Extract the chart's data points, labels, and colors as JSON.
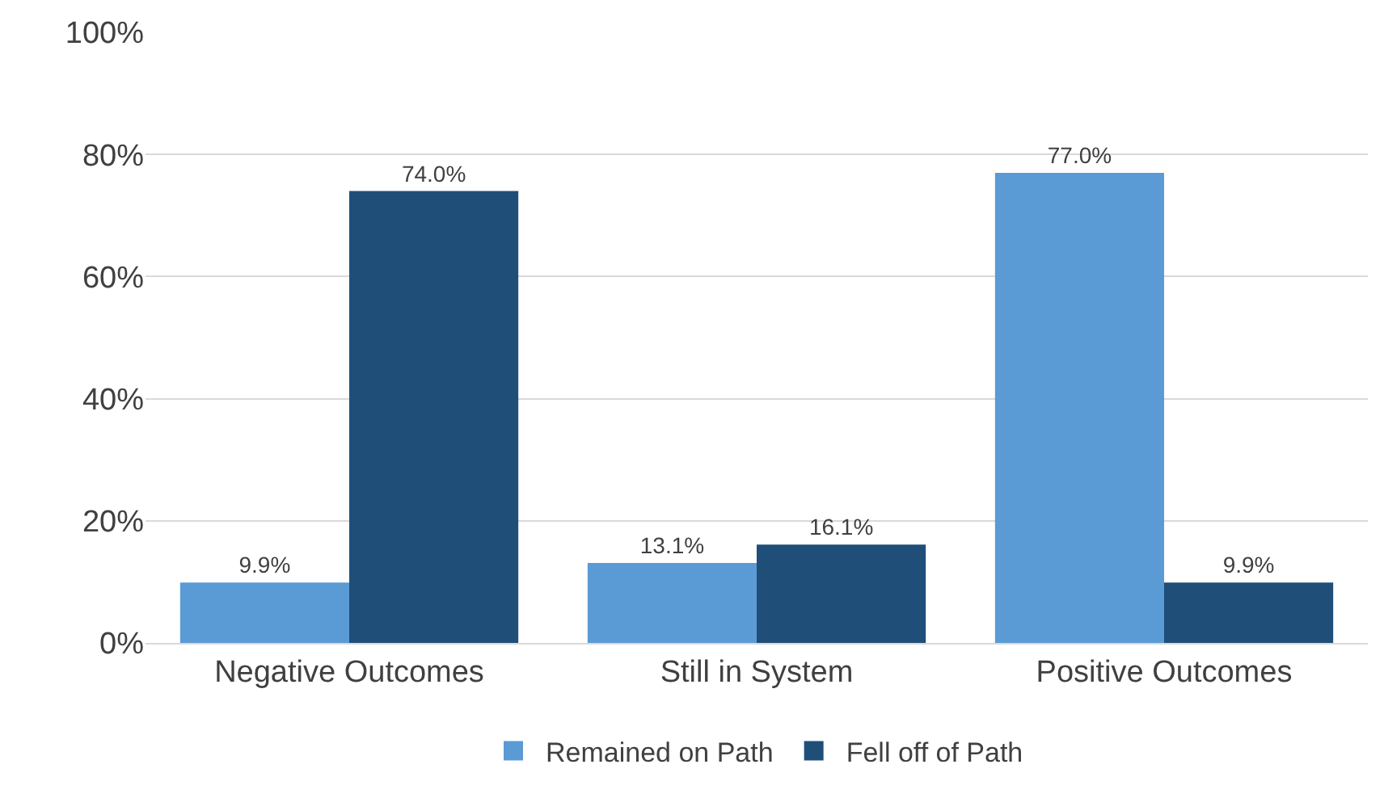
{
  "chart_data": {
    "type": "bar",
    "categories": [
      "Negative Outcomes",
      "Still in System",
      "Positive Outcomes"
    ],
    "series": [
      {
        "name": "Remained on Path",
        "color": "#5b9bd5",
        "values": [
          9.9,
          13.1,
          77.0
        ],
        "value_labels": [
          "9.9%",
          "13.1%",
          "77.0%"
        ]
      },
      {
        "name": "Fell off of Path",
        "color": "#1f4e79",
        "values": [
          74.0,
          16.1,
          9.9
        ],
        "value_labels": [
          "74.0%",
          "16.1%",
          "9.9%"
        ]
      }
    ],
    "ylim": [
      0,
      100
    ],
    "yticks": [
      {
        "value": 0,
        "label": "0%"
      },
      {
        "value": 20,
        "label": "20%"
      },
      {
        "value": 40,
        "label": "40%"
      },
      {
        "value": 60,
        "label": "60%"
      },
      {
        "value": 80,
        "label": "80%"
      },
      {
        "value": 100,
        "label": "100%"
      }
    ],
    "grid": "y",
    "legend": "bottom"
  }
}
